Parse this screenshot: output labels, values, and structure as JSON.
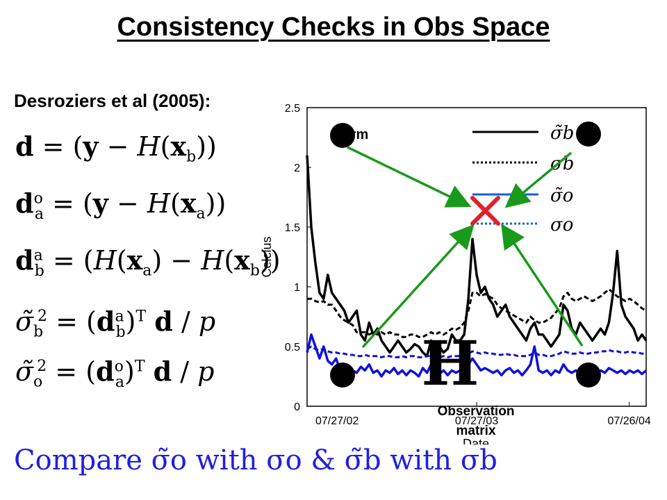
{
  "slide": {
    "title": "Consistency Checks in Obs Space",
    "subtitle": "Desroziers et al (2005):",
    "bottom_text": "Compare σ̃o with σo & σ̃b with σb"
  },
  "equations": [
    "d = (y − H(xb))",
    "dao = (y − H(xa))",
    "dba = (H(xa) − H(xb))",
    "σ̃b² = (dba)T d / p",
    "σ̃o² = (dao)T d / p"
  ],
  "annotations": {
    "top_left": "Norm",
    "bottom_center_line1": "Observation",
    "bottom_center_line2": "matrix",
    "glyph": "H",
    "cross_color": "#e0202a",
    "arrow_color": "#1a9a1a"
  },
  "chart_data": {
    "type": "line",
    "title": "",
    "xlabel": "Date",
    "ylabel": "Celcius",
    "ylim": [
      0,
      2.5
    ],
    "yticks": [
      "0",
      "0.5",
      "1",
      "1.5",
      "2",
      "2.5"
    ],
    "xticks": [
      "07/27/02",
      "07/27/03",
      "07/26/04"
    ],
    "grid": false,
    "legend_placement": "top-right",
    "series": [
      {
        "name": "σ̃b",
        "color": "#000000",
        "style": "solid",
        "values": [
          2.1,
          1.5,
          1.2,
          0.95,
          0.9,
          1.1,
          0.95,
          0.9,
          0.85,
          0.8,
          0.7,
          0.75,
          0.8,
          0.6,
          0.55,
          0.7,
          0.6,
          0.65,
          0.55,
          0.5,
          0.45,
          0.5,
          0.55,
          0.5,
          0.45,
          0.48,
          0.52,
          0.5,
          0.45,
          0.42,
          0.55,
          0.5,
          0.5,
          0.45,
          0.48,
          0.6,
          0.55,
          0.55,
          0.6,
          0.9,
          1.4,
          1.1,
          0.95,
          1.0,
          0.9,
          0.85,
          0.75,
          0.8,
          0.85,
          0.75,
          0.7,
          0.65,
          0.6,
          0.55,
          0.65,
          0.7,
          0.6,
          0.6,
          0.55,
          0.5,
          0.55,
          0.6,
          0.85,
          0.8,
          0.65,
          0.6,
          0.7,
          0.65,
          0.6,
          0.55,
          0.6,
          0.65,
          0.6,
          0.7,
          0.95,
          1.3,
          0.85,
          0.75,
          0.7,
          0.65,
          0.55,
          0.6,
          0.55
        ]
      },
      {
        "name": "σb",
        "color": "#000000",
        "style": "dashed",
        "values": [
          0.9,
          0.9,
          0.88,
          0.87,
          0.88,
          0.85,
          0.85,
          0.8,
          0.75,
          0.72,
          0.7,
          0.68,
          0.62,
          0.62,
          0.62,
          0.6,
          0.62,
          0.6,
          0.62,
          0.6,
          0.62,
          0.6,
          0.6,
          0.58,
          0.58,
          0.6,
          0.6,
          0.58,
          0.58,
          0.6,
          0.62,
          0.6,
          0.62,
          0.6,
          0.62,
          0.65,
          0.64,
          0.66,
          0.7,
          0.8,
          0.95,
          0.95,
          0.92,
          0.94,
          0.92,
          0.9,
          0.85,
          0.82,
          0.8,
          0.78,
          0.76,
          0.74,
          0.72,
          0.7,
          0.75,
          0.72,
          0.7,
          0.7,
          0.72,
          0.74,
          0.78,
          0.82,
          0.92,
          0.95,
          0.9,
          0.88,
          0.9,
          0.92,
          0.9,
          0.88,
          0.9,
          0.92,
          0.95,
          0.98,
          0.95,
          0.92,
          0.9,
          0.88,
          0.9,
          0.88,
          0.85,
          0.82,
          0.8
        ]
      },
      {
        "name": "σ̃o",
        "color": "#1010e0",
        "style": "solid",
        "values": [
          0.45,
          0.6,
          0.5,
          0.4,
          0.5,
          0.38,
          0.35,
          0.4,
          0.3,
          0.35,
          0.32,
          0.3,
          0.28,
          0.33,
          0.3,
          0.35,
          0.28,
          0.3,
          0.25,
          0.3,
          0.28,
          0.32,
          0.27,
          0.3,
          0.26,
          0.3,
          0.28,
          0.25,
          0.32,
          0.28,
          0.35,
          0.3,
          0.27,
          0.3,
          0.26,
          0.3,
          0.28,
          0.3,
          0.32,
          0.35,
          0.4,
          0.35,
          0.3,
          0.32,
          0.3,
          0.28,
          0.3,
          0.26,
          0.3,
          0.32,
          0.28,
          0.3,
          0.26,
          0.3,
          0.35,
          0.5,
          0.3,
          0.28,
          0.3,
          0.26,
          0.3,
          0.28,
          0.35,
          0.3,
          0.28,
          0.3,
          0.27,
          0.3,
          0.28,
          0.3,
          0.27,
          0.3,
          0.28,
          0.32,
          0.3,
          0.28,
          0.3,
          0.27,
          0.3,
          0.28,
          0.3,
          0.27,
          0.3
        ]
      },
      {
        "name": "σo",
        "color": "#1010e0",
        "style": "dashed",
        "values": [
          0.48,
          0.5,
          0.48,
          0.47,
          0.48,
          0.46,
          0.45,
          0.45,
          0.44,
          0.44,
          0.43,
          0.43,
          0.42,
          0.42,
          0.43,
          0.42,
          0.42,
          0.42,
          0.41,
          0.42,
          0.42,
          0.41,
          0.41,
          0.42,
          0.41,
          0.42,
          0.42,
          0.41,
          0.41,
          0.42,
          0.42,
          0.42,
          0.41,
          0.42,
          0.41,
          0.42,
          0.42,
          0.42,
          0.43,
          0.44,
          0.46,
          0.45,
          0.44,
          0.45,
          0.44,
          0.44,
          0.43,
          0.43,
          0.44,
          0.43,
          0.43,
          0.42,
          0.42,
          0.42,
          0.43,
          0.45,
          0.43,
          0.43,
          0.42,
          0.42,
          0.43,
          0.44,
          0.46,
          0.45,
          0.44,
          0.44,
          0.45,
          0.44,
          0.44,
          0.45,
          0.45,
          0.46,
          0.46,
          0.47,
          0.46,
          0.46,
          0.45,
          0.45,
          0.46,
          0.45,
          0.45,
          0.44,
          0.44
        ]
      }
    ]
  }
}
